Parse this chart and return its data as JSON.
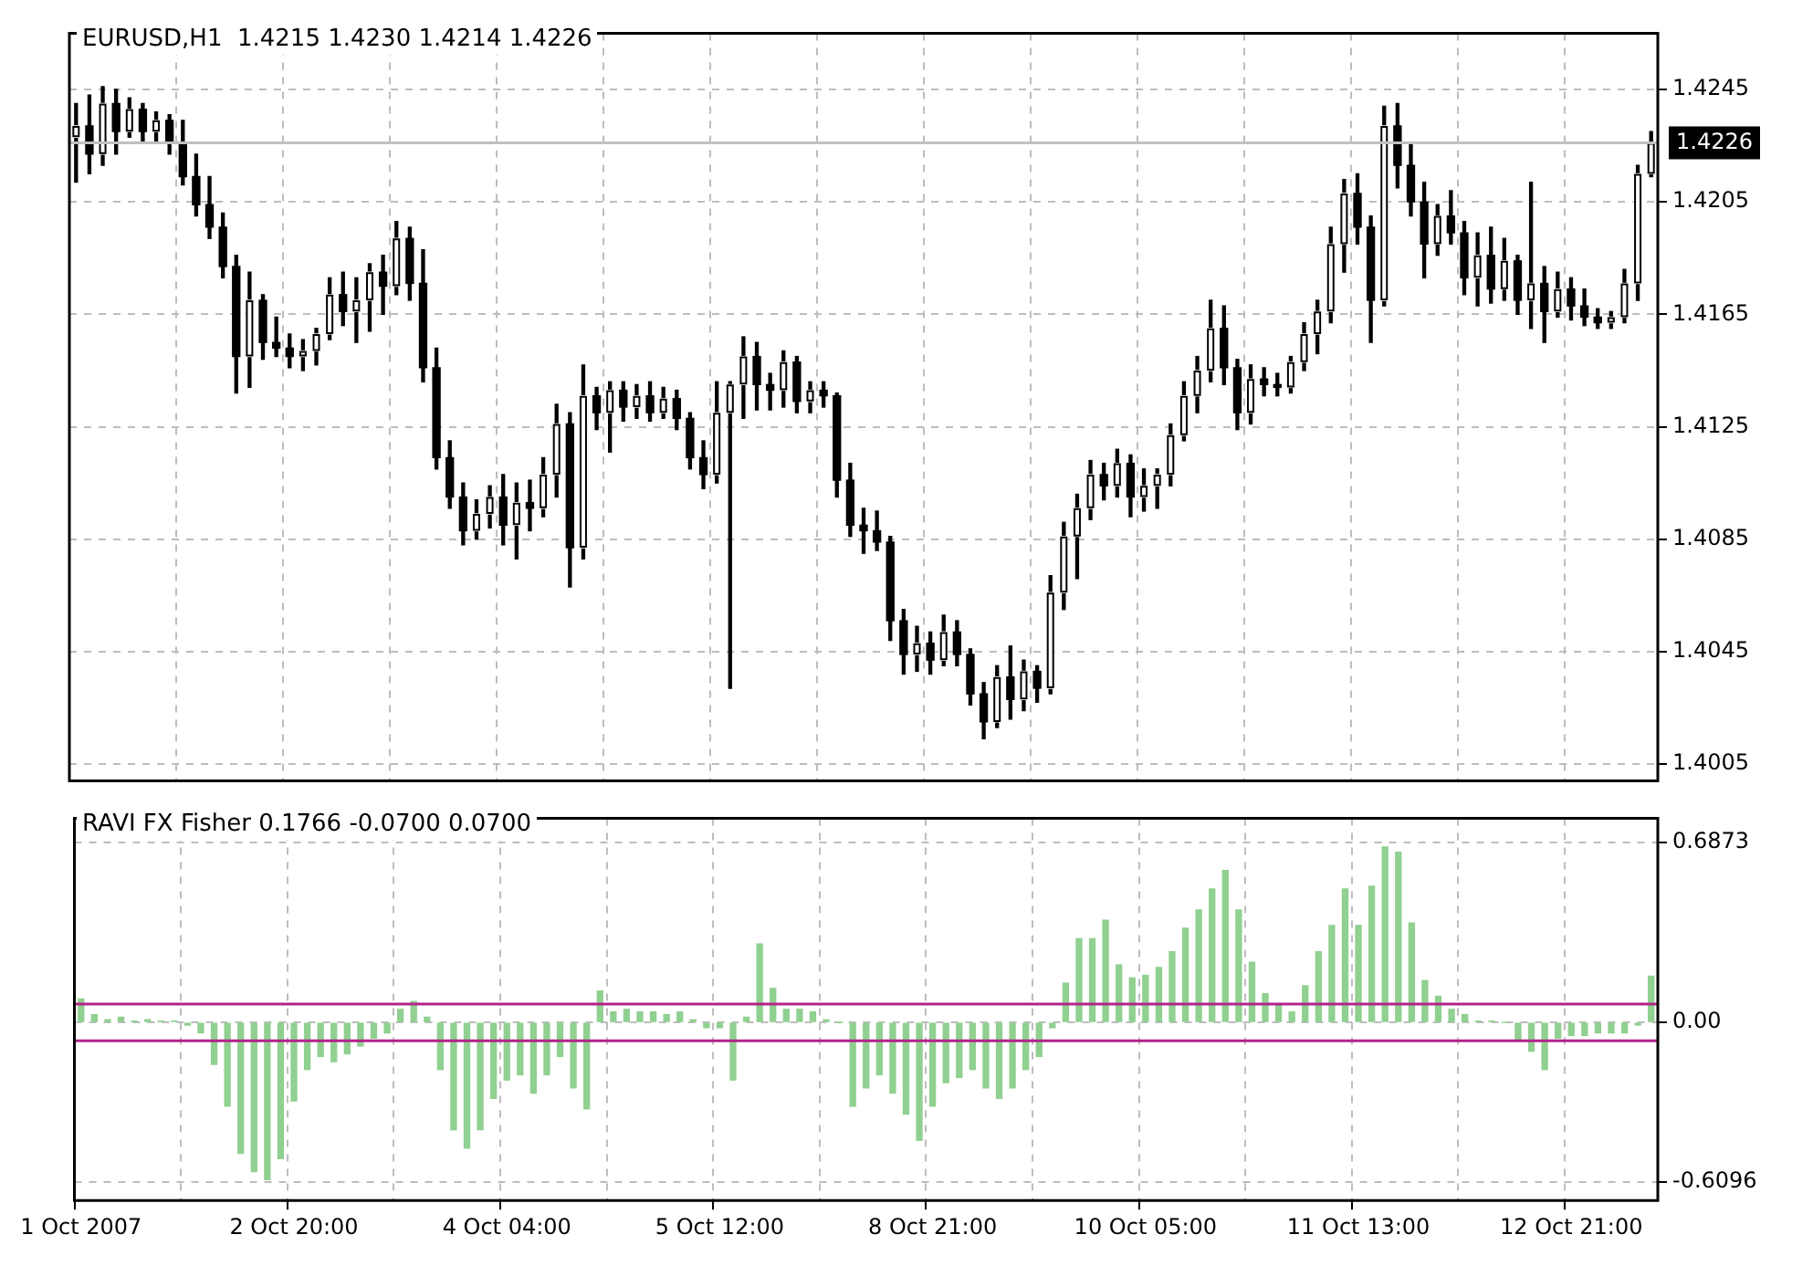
{
  "chart_data": [
    {
      "type": "candlestick",
      "title": "EURUSD,H1  1.4215 1.4230 1.4214 1.4226",
      "color": "#000000",
      "grid": true,
      "tick_labels": "y",
      "colors": [
        "#ffffff",
        "#000000",
        "#ffffff",
        "#000000",
        "#ffffff",
        "#000000",
        "#ffffff",
        "#000000",
        "#000000",
        "#000000",
        "#000000",
        "#000000",
        "#000000",
        "#ffffff",
        "#000000",
        "#000000",
        "#000000",
        "#ffffff",
        "#ffffff",
        "#ffffff",
        "#000000",
        "#ffffff",
        "#ffffff",
        "#000000",
        "#ffffff",
        "#000000",
        "#000000",
        "#000000",
        "#000000",
        "#000000",
        "#ffffff",
        "#ffffff",
        "#000000",
        "#ffffff",
        "#000000",
        "#ffffff",
        "#ffffff",
        "#000000",
        "#ffffff",
        "#000000",
        "#ffffff",
        "#000000",
        "#ffffff",
        "#000000",
        "#ffffff",
        "#000000",
        "#000000",
        "#000000",
        "#ffffff",
        "#ffffff",
        "#ffffff",
        "#000000",
        "#000000",
        "#ffffff",
        "#000000",
        "#ffffff",
        "#000000",
        "#000000",
        "#000000",
        "#000000",
        "#000000",
        "#000000",
        "#000000",
        "#ffffff",
        "#000000",
        "#ffffff",
        "#000000",
        "#000000",
        "#000000",
        "#ffffff",
        "#000000",
        "#ffffff",
        "#000000",
        "#ffffff",
        "#ffffff",
        "#ffffff",
        "#ffffff",
        "#000000",
        "#ffffff",
        "#000000",
        "#ffffff",
        "#ffffff",
        "#ffffff",
        "#ffffff",
        "#ffffff",
        "#ffffff",
        "#000000",
        "#000000",
        "#ffffff",
        "#000000",
        "#000000",
        "#ffffff",
        "#ffffff",
        "#ffffff",
        "#ffffff",
        "#ffffff",
        "#000000",
        "#000000",
        "#ffffff",
        "#000000",
        "#000000",
        "#000000",
        "#ffffff",
        "#000000",
        "#000000",
        "#ffffff",
        "#000000",
        "#ffffff",
        "#000000",
        "#ffffff",
        "#000000",
        "#ffffff",
        "#000000",
        "#000000",
        "#000000",
        "#ffffff",
        "#ffffff",
        "#ffffff",
        "#ffffff"
      ],
      "categories": [
        null,
        null,
        null,
        null,
        null,
        null,
        null,
        null,
        null,
        null,
        null,
        null,
        null,
        null,
        null,
        null,
        null,
        null,
        null,
        null,
        null,
        null,
        null,
        null,
        null,
        null,
        null,
        null,
        null,
        null,
        null,
        null,
        null,
        null,
        null,
        null,
        null,
        null,
        null,
        null,
        null,
        null,
        null,
        null,
        null,
        null,
        null,
        null,
        null,
        null,
        null,
        null,
        null,
        null,
        null,
        null,
        null,
        null,
        null,
        null,
        null,
        null,
        null,
        null,
        null,
        null,
        null,
        null,
        null,
        null,
        null,
        null,
        null,
        null,
        null,
        null,
        null,
        null,
        null,
        null,
        null,
        null,
        null,
        null,
        null,
        null,
        null,
        null,
        null,
        null,
        null,
        null,
        null,
        null,
        null,
        null,
        null,
        null,
        null,
        null,
        null,
        null,
        null,
        null,
        null,
        null,
        null,
        null,
        null,
        null,
        null,
        null,
        null,
        null,
        null,
        null,
        null,
        null,
        null
      ],
      "ohlc": [
        [
          1.4228,
          1.424,
          1.4212,
          1.4232
        ],
        [
          1.4232,
          1.4243,
          1.4215,
          1.4222
        ],
        [
          1.4222,
          1.4246,
          1.4218,
          1.424
        ],
        [
          1.424,
          1.4245,
          1.4222,
          1.423
        ],
        [
          1.423,
          1.4242,
          1.4228,
          1.4238
        ],
        [
          1.4238,
          1.424,
          1.4226,
          1.423
        ],
        [
          1.423,
          1.4237,
          1.4226,
          1.4234
        ],
        [
          1.4234,
          1.4236,
          1.4222,
          1.4226
        ],
        [
          1.4226,
          1.4234,
          1.4211,
          1.4214
        ],
        [
          1.4214,
          1.4222,
          1.42,
          1.4204
        ],
        [
          1.4204,
          1.4214,
          1.4192,
          1.4196
        ],
        [
          1.4196,
          1.4201,
          1.4178,
          1.4182
        ],
        [
          1.4182,
          1.4186,
          1.4137,
          1.415
        ],
        [
          1.415,
          1.418,
          1.4139,
          1.417
        ],
        [
          1.417,
          1.4172,
          1.4149,
          1.4155
        ],
        [
          1.4155,
          1.4164,
          1.415,
          1.4153
        ],
        [
          1.4153,
          1.4158,
          1.4146,
          1.415
        ],
        [
          1.415,
          1.4156,
          1.4145,
          1.4152
        ],
        [
          1.4152,
          1.416,
          1.4147,
          1.4158
        ],
        [
          1.4158,
          1.4178,
          1.4156,
          1.4172
        ],
        [
          1.4172,
          1.418,
          1.4161,
          1.4166
        ],
        [
          1.4166,
          1.4178,
          1.4155,
          1.417
        ],
        [
          1.417,
          1.4183,
          1.4159,
          1.418
        ],
        [
          1.418,
          1.4186,
          1.4165,
          1.4175
        ],
        [
          1.4175,
          1.4198,
          1.4172,
          1.4192
        ],
        [
          1.4192,
          1.4196,
          1.417,
          1.4176
        ],
        [
          1.4176,
          1.4188,
          1.4141,
          1.4146
        ],
        [
          1.4146,
          1.4153,
          1.411,
          1.4114
        ],
        [
          1.4114,
          1.412,
          1.4096,
          1.41
        ],
        [
          1.41,
          1.4105,
          1.4083,
          1.4088
        ],
        [
          1.4088,
          1.4099,
          1.4085,
          1.4094
        ],
        [
          1.4094,
          1.4104,
          1.4089,
          1.41
        ],
        [
          1.41,
          1.4108,
          1.4083,
          1.409
        ],
        [
          1.409,
          1.4105,
          1.4078,
          1.4098
        ],
        [
          1.4098,
          1.4106,
          1.4088,
          1.4096
        ],
        [
          1.4096,
          1.4114,
          1.4093,
          1.4108
        ],
        [
          1.4108,
          1.4133,
          1.41,
          1.4126
        ],
        [
          1.4126,
          1.413,
          1.4068,
          1.4082
        ],
        [
          1.4082,
          1.4147,
          1.4078,
          1.4136
        ],
        [
          1.4136,
          1.4139,
          1.4124,
          1.413
        ],
        [
          1.413,
          1.4141,
          1.4116,
          1.4138
        ],
        [
          1.4138,
          1.4141,
          1.4127,
          1.4132
        ],
        [
          1.4132,
          1.414,
          1.4128,
          1.4136
        ],
        [
          1.4136,
          1.4141,
          1.4127,
          1.413
        ],
        [
          1.413,
          1.4139,
          1.4128,
          1.4135
        ],
        [
          1.4135,
          1.4138,
          1.4124,
          1.4128
        ],
        [
          1.4128,
          1.413,
          1.411,
          1.4114
        ],
        [
          1.4114,
          1.412,
          1.4103,
          1.4108
        ],
        [
          1.4108,
          1.4141,
          1.4105,
          1.413
        ],
        [
          1.413,
          1.4141,
          1.4032,
          1.414
        ],
        [
          1.414,
          1.4157,
          1.4128,
          1.415
        ],
        [
          1.415,
          1.4155,
          1.4131,
          1.414
        ],
        [
          1.414,
          1.4144,
          1.4131,
          1.4138
        ],
        [
          1.4138,
          1.4152,
          1.4132,
          1.4148
        ],
        [
          1.4148,
          1.415,
          1.413,
          1.4134
        ],
        [
          1.4134,
          1.4141,
          1.413,
          1.4138
        ],
        [
          1.4138,
          1.4141,
          1.4132,
          1.4136
        ],
        [
          1.4136,
          1.4137,
          1.41,
          1.4106
        ],
        [
          1.4106,
          1.4112,
          1.4086,
          1.409
        ],
        [
          1.409,
          1.4096,
          1.408,
          1.4088
        ],
        [
          1.4088,
          1.4095,
          1.4081,
          1.4084
        ],
        [
          1.4084,
          1.4086,
          1.4049,
          1.4056
        ],
        [
          1.4056,
          1.406,
          1.4037,
          1.4044
        ],
        [
          1.4044,
          1.4054,
          1.4038,
          1.4048
        ],
        [
          1.4048,
          1.4052,
          1.4037,
          1.4042
        ],
        [
          1.4042,
          1.4058,
          1.404,
          1.4052
        ],
        [
          1.4052,
          1.4056,
          1.404,
          1.4044
        ],
        [
          1.4044,
          1.4046,
          1.4026,
          1.403
        ],
        [
          1.403,
          1.4034,
          1.4014,
          1.402
        ],
        [
          1.402,
          1.404,
          1.4018,
          1.4036
        ],
        [
          1.4036,
          1.4047,
          1.4021,
          1.4028
        ],
        [
          1.4028,
          1.4042,
          1.4024,
          1.4038
        ],
        [
          1.4038,
          1.404,
          1.4027,
          1.4032
        ],
        [
          1.4032,
          1.4072,
          1.403,
          1.4066
        ],
        [
          1.4066,
          1.4091,
          1.406,
          1.4086
        ],
        [
          1.4086,
          1.4101,
          1.4071,
          1.4096
        ],
        [
          1.4096,
          1.4113,
          1.4092,
          1.4108
        ],
        [
          1.4108,
          1.4112,
          1.4099,
          1.4104
        ],
        [
          1.4104,
          1.4117,
          1.41,
          1.4112
        ],
        [
          1.4112,
          1.4115,
          1.4093,
          1.41
        ],
        [
          1.41,
          1.411,
          1.4095,
          1.4104
        ],
        [
          1.4104,
          1.411,
          1.4096,
          1.4108
        ],
        [
          1.4108,
          1.4126,
          1.4104,
          1.4122
        ],
        [
          1.4122,
          1.4141,
          1.412,
          1.4136
        ],
        [
          1.4136,
          1.415,
          1.413,
          1.4145
        ],
        [
          1.4145,
          1.417,
          1.4141,
          1.416
        ],
        [
          1.416,
          1.4168,
          1.414,
          1.4146
        ],
        [
          1.4146,
          1.4149,
          1.4124,
          1.413
        ],
        [
          1.413,
          1.4147,
          1.4126,
          1.4142
        ],
        [
          1.4142,
          1.4146,
          1.4136,
          1.414
        ],
        [
          1.414,
          1.4144,
          1.4136,
          1.4139
        ],
        [
          1.4139,
          1.415,
          1.4137,
          1.4148
        ],
        [
          1.4148,
          1.4162,
          1.4145,
          1.4158
        ],
        [
          1.4158,
          1.417,
          1.4151,
          1.4166
        ],
        [
          1.4166,
          1.4196,
          1.4162,
          1.419
        ],
        [
          1.419,
          1.4213,
          1.418,
          1.4208
        ],
        [
          1.4208,
          1.4215,
          1.419,
          1.4196
        ],
        [
          1.4196,
          1.42,
          1.4155,
          1.417
        ],
        [
          1.417,
          1.4239,
          1.4168,
          1.4232
        ],
        [
          1.4232,
          1.424,
          1.421,
          1.4218
        ],
        [
          1.4218,
          1.4226,
          1.42,
          1.4205
        ],
        [
          1.4205,
          1.4212,
          1.4178,
          1.419
        ],
        [
          1.419,
          1.4204,
          1.4186,
          1.42
        ],
        [
          1.42,
          1.4209,
          1.419,
          1.4194
        ],
        [
          1.4194,
          1.4198,
          1.4172,
          1.4178
        ],
        [
          1.4178,
          1.4194,
          1.4168,
          1.4186
        ],
        [
          1.4186,
          1.4196,
          1.4169,
          1.4174
        ],
        [
          1.4174,
          1.4192,
          1.417,
          1.4184
        ],
        [
          1.4184,
          1.4186,
          1.4165,
          1.417
        ],
        [
          1.417,
          1.4212,
          1.416,
          1.4176
        ],
        [
          1.4176,
          1.4182,
          1.4155,
          1.4166
        ],
        [
          1.4166,
          1.418,
          1.4164,
          1.4174
        ],
        [
          1.4174,
          1.4178,
          1.4163,
          1.4168
        ],
        [
          1.4168,
          1.4174,
          1.4161,
          1.4164
        ],
        [
          1.4164,
          1.4167,
          1.416,
          1.4162
        ],
        [
          1.4162,
          1.4166,
          1.416,
          1.4164
        ],
        [
          1.4164,
          1.4181,
          1.4162,
          1.4176
        ],
        [
          1.4176,
          1.4218,
          1.417,
          1.4215
        ],
        [
          1.4215,
          1.423,
          1.4214,
          1.4226
        ]
      ],
      "ylim": [
        1.3999,
        1.4265
      ],
      "yticks": [
        1.4005,
        1.4045,
        1.4085,
        1.4125,
        1.4165,
        1.4205,
        1.4245
      ],
      "ref_lines": [
        {
          "axis": "y",
          "value": 1.4226,
          "label": "1.4226",
          "color": "#c0c0c0"
        }
      ]
    },
    {
      "type": "bar",
      "title": "RAVI FX Fisher 0.1766 -0.0700 0.0700",
      "color": "#90d090",
      "grid": true,
      "categories": [
        "1 Oct 2007",
        null,
        null,
        null,
        null,
        null,
        null,
        null,
        null,
        null,
        null,
        null,
        null,
        null,
        null,
        null,
        "2 Oct 20:00",
        null,
        null,
        null,
        null,
        null,
        null,
        null,
        null,
        null,
        null,
        null,
        null,
        null,
        null,
        null,
        "4 Oct 04:00",
        null,
        null,
        null,
        null,
        null,
        null,
        null,
        null,
        null,
        null,
        null,
        null,
        null,
        null,
        null,
        "5 Oct 12:00",
        null,
        null,
        null,
        null,
        null,
        null,
        null,
        null,
        null,
        null,
        null,
        null,
        null,
        null,
        null,
        "8 Oct 21:00",
        null,
        null,
        null,
        null,
        null,
        null,
        null,
        null,
        null,
        null,
        null,
        null,
        null,
        null,
        null,
        "10 Oct 05:00",
        null,
        null,
        null,
        null,
        null,
        null,
        null,
        null,
        null,
        null,
        null,
        null,
        null,
        null,
        null,
        "11 Oct 13:00",
        null,
        null,
        null,
        null,
        null,
        null,
        null,
        null,
        null,
        null,
        null,
        null,
        null,
        null,
        null,
        "12 Oct 21:00",
        null,
        null,
        null,
        null,
        null,
        null
      ],
      "values": [
        0.09,
        0.03,
        0.01,
        0.02,
        0.005,
        0.01,
        0.005,
        0.005,
        -0.01,
        -0.04,
        -0.16,
        -0.32,
        -0.5,
        -0.57,
        -0.6,
        -0.52,
        -0.3,
        -0.18,
        -0.13,
        -0.15,
        -0.12,
        -0.09,
        -0.06,
        -0.04,
        0.05,
        0.08,
        0.02,
        -0.18,
        -0.41,
        -0.48,
        -0.41,
        -0.29,
        -0.22,
        -0.2,
        -0.27,
        -0.2,
        -0.13,
        -0.25,
        -0.33,
        0.12,
        0.04,
        0.05,
        0.04,
        0.04,
        0.03,
        0.04,
        0.01,
        -0.02,
        -0.02,
        -0.22,
        0.02,
        0.3,
        0.13,
        0.05,
        0.05,
        0.04,
        0.01,
        0,
        -0.32,
        -0.25,
        -0.2,
        -0.27,
        -0.35,
        -0.45,
        -0.32,
        -0.23,
        -0.21,
        -0.18,
        -0.25,
        -0.29,
        -0.25,
        -0.18,
        -0.13,
        -0.02,
        0.15,
        0.32,
        0.32,
        0.39,
        0.22,
        0.17,
        0.18,
        0.21,
        0.27,
        0.36,
        0.43,
        0.51,
        0.58,
        0.43,
        0.23,
        0.11,
        0.07,
        0.04,
        0.14,
        0.27,
        0.37,
        0.51,
        0.37,
        0.52,
        0.67,
        0.65,
        0.38,
        0.16,
        0.1,
        0.05,
        0.03,
        0.005,
        0.005,
        0,
        -0.07,
        -0.11,
        -0.18,
        -0.06,
        -0.05,
        -0.05,
        -0.04,
        -0.04,
        -0.04,
        -0.01,
        0.1766
      ],
      "ylim": [
        -0.68,
        0.78
      ],
      "yticks": [
        {
          "value": -0.6096,
          "label": "-0.6096"
        },
        {
          "value": 0,
          "label": "0.00"
        },
        {
          "value": 0.6873,
          "label": "0.6873"
        }
      ],
      "ref_lines": [
        {
          "axis": "y",
          "value": 0.07,
          "color": "#b4238c"
        },
        {
          "axis": "y",
          "value": -0.07,
          "color": "#b4238c"
        }
      ]
    }
  ]
}
